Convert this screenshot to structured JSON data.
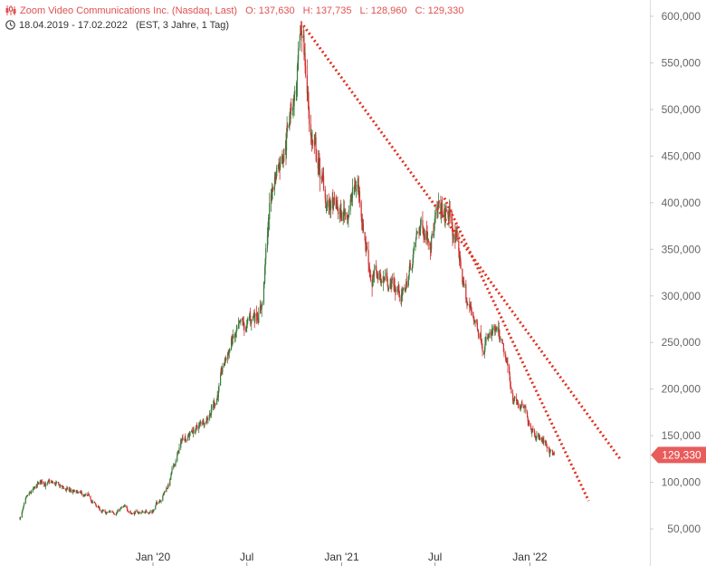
{
  "header": {
    "title": "Zoom Video Communications Inc. (Nasdaq, Last)",
    "open": "O: 137,630",
    "high": "H: 137,735",
    "low": "L: 128,960",
    "close": "C: 129,330",
    "range": "18.04.2019 - 17.02.2022",
    "interval": "(EST, 3 Jahre, 1 Tag)",
    "chart_icon": "candlestick-icon",
    "time_icon": "clock-icon"
  },
  "last_value_label": "129,330",
  "colors": {
    "up": "#3a7a3a",
    "down": "#d03030",
    "trendline": "#e03020",
    "axis_text": "#666666",
    "title": "#e05050",
    "last_badge": "#e85c5c"
  },
  "chart_data": {
    "type": "candlestick",
    "title": "Zoom Video Communications Inc. (Nasdaq, Last)",
    "xlabel": "",
    "ylabel": "",
    "ylim": [
      0,
      605000
    ],
    "x_range": [
      "2019-04-18",
      "2022-06-30"
    ],
    "y_ticks": [
      50000,
      100000,
      150000,
      200000,
      250000,
      300000,
      350000,
      400000,
      450000,
      500000,
      550000,
      600000
    ],
    "y_tick_labels": [
      "50,000",
      "100,000",
      "150,000",
      "200,000",
      "250,000",
      "300,000",
      "350,000",
      "400,000",
      "450,000",
      "500,000",
      "550,000",
      "600,000"
    ],
    "x_ticks": [
      {
        "label": "Jan '20",
        "date": "2020-01-01"
      },
      {
        "label": "Jul",
        "date": "2020-07-01"
      },
      {
        "label": "Jan '21",
        "date": "2021-01-01"
      },
      {
        "label": "Jul",
        "date": "2021-07-01"
      },
      {
        "label": "Jan '22",
        "date": "2022-01-01"
      }
    ],
    "price_path": [
      [
        "2019-04-18",
        62000
      ],
      [
        "2019-05-01",
        80000
      ],
      [
        "2019-06-01",
        100000
      ],
      [
        "2019-07-01",
        95000
      ],
      [
        "2019-08-01",
        88000
      ],
      [
        "2019-09-01",
        80000
      ],
      [
        "2019-10-01",
        65000
      ],
      [
        "2019-11-01",
        72000
      ],
      [
        "2019-12-01",
        67000
      ],
      [
        "2020-01-01",
        70000
      ],
      [
        "2020-02-01",
        100000
      ],
      [
        "2020-03-01",
        150000
      ],
      [
        "2020-04-01",
        160000
      ],
      [
        "2020-05-01",
        190000
      ],
      [
        "2020-06-01",
        250000
      ],
      [
        "2020-07-01",
        260000
      ],
      [
        "2020-08-01",
        300000
      ],
      [
        "2020-08-15",
        400000
      ],
      [
        "2020-09-01",
        450000
      ],
      [
        "2020-10-01",
        520000
      ],
      [
        "2020-10-19",
        568000
      ],
      [
        "2020-11-01",
        480000
      ],
      [
        "2020-12-01",
        400000
      ],
      [
        "2021-01-01",
        380000
      ],
      [
        "2021-02-01",
        420000
      ],
      [
        "2021-03-01",
        320000
      ],
      [
        "2021-04-01",
        320000
      ],
      [
        "2021-05-01",
        300000
      ],
      [
        "2021-06-01",
        370000
      ],
      [
        "2021-07-01",
        385000
      ],
      [
        "2021-07-31",
        380000
      ],
      [
        "2021-08-15",
        345000
      ],
      [
        "2021-09-01",
        290000
      ],
      [
        "2021-10-01",
        260000
      ],
      [
        "2021-11-01",
        250000
      ],
      [
        "2021-12-01",
        190000
      ],
      [
        "2022-01-01",
        165000
      ],
      [
        "2022-02-17",
        129330
      ]
    ],
    "last_value": 129330,
    "trendlines": [
      {
        "from": [
          "2020-10-19",
          590000
        ],
        "to": [
          "2022-06-25",
          125000
        ]
      },
      {
        "from": [
          "2021-07-19",
          405000
        ],
        "to": [
          "2022-04-25",
          80000
        ]
      }
    ],
    "grid": false,
    "legend": "none"
  }
}
